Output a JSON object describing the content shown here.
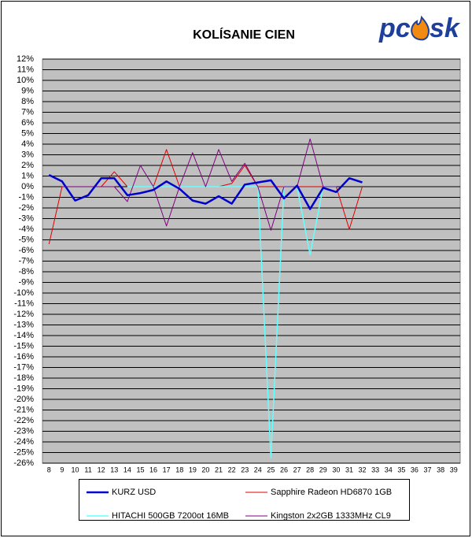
{
  "logo": [
    "pc",
    "sk"
  ],
  "chart_data": {
    "type": "line",
    "title": "KOLÍSANIE CIEN",
    "categories": [
      "8",
      "9",
      "10",
      "11",
      "12",
      "13",
      "14",
      "15",
      "16",
      "17",
      "18",
      "19",
      "20",
      "21",
      "22",
      "23",
      "24",
      "25",
      "26",
      "27",
      "28",
      "29",
      "30",
      "31",
      "32",
      "33",
      "34",
      "35",
      "36",
      "37",
      "38",
      "39"
    ],
    "series": [
      {
        "name": "KURZ USD",
        "color": "#0000cc",
        "width": 2.5,
        "values": [
          1.1,
          0.5,
          -1.3,
          -0.8,
          0.8,
          0.8,
          -0.8,
          -0.6,
          -0.3,
          0.5,
          -0.2,
          -1.3,
          -1.6,
          -0.9,
          -1.6,
          0.2,
          0.4,
          0.6,
          -1.1,
          0.1,
          -2.1,
          -0.1,
          -0.5,
          0.8,
          0.4,
          null,
          null,
          null,
          null,
          null,
          null,
          null
        ]
      },
      {
        "name": "Sapphire Radeon HD6870 1GB",
        "color": "#e00000",
        "width": 1,
        "values": [
          -5.4,
          0,
          0,
          0,
          0,
          1.4,
          0,
          0,
          0,
          3.5,
          0,
          0,
          0,
          0,
          0.3,
          2.0,
          0,
          0,
          0,
          0,
          0,
          0,
          0,
          -4.0,
          0,
          null,
          null,
          null,
          null,
          null,
          null,
          null
        ]
      },
      {
        "name": "HITACHI 500GB 7200ot 16MB",
        "color": "#66ffff",
        "width": 1.5,
        "values": [
          null,
          null,
          null,
          null,
          null,
          null,
          0,
          0,
          0,
          0,
          0,
          0,
          0,
          0,
          0,
          0,
          0,
          -25.5,
          0,
          0,
          -6.4,
          0,
          0,
          null,
          null,
          null,
          null,
          null,
          null,
          null,
          null,
          null
        ]
      },
      {
        "name": "Kingston 2x2GB 1333MHz CL9",
        "color": "#800080",
        "width": 1,
        "values": [
          null,
          0,
          0,
          0,
          0,
          0,
          -1.4,
          2.0,
          0,
          -3.7,
          0,
          3.2,
          0,
          3.5,
          0.5,
          2.2,
          0,
          -4.1,
          0,
          0,
          4.5,
          0,
          0,
          null,
          null,
          null,
          null,
          null,
          null,
          null,
          null,
          null
        ]
      }
    ],
    "ylim": [
      -26,
      12
    ],
    "yticks": [
      {
        "value": 12,
        "label": "12%"
      },
      {
        "value": 11,
        "label": "11%"
      },
      {
        "value": 10,
        "label": "10%"
      },
      {
        "value": 9,
        "label": "9%"
      },
      {
        "value": 8,
        "label": "8%"
      },
      {
        "value": 7,
        "label": "7%"
      },
      {
        "value": 6,
        "label": "6%"
      },
      {
        "value": 5,
        "label": "5%"
      },
      {
        "value": 4,
        "label": "4%"
      },
      {
        "value": 3,
        "label": "3%"
      },
      {
        "value": 2,
        "label": "2%"
      },
      {
        "value": 1,
        "label": "1%"
      },
      {
        "value": 0,
        "label": "0%"
      },
      {
        "value": -1,
        "label": "-1%"
      },
      {
        "value": -2,
        "label": "-2%"
      },
      {
        "value": -3,
        "label": "-3%"
      },
      {
        "value": -4,
        "label": "-4%"
      },
      {
        "value": -5,
        "label": "-5%"
      },
      {
        "value": -6,
        "label": "-6%"
      },
      {
        "value": -7,
        "label": "-7%"
      },
      {
        "value": -8,
        "label": "-8%"
      },
      {
        "value": -9,
        "label": "-9%"
      },
      {
        "value": -10,
        "label": "-10%"
      },
      {
        "value": -11,
        "label": "-11%"
      },
      {
        "value": -12,
        "label": "-12%"
      },
      {
        "value": -13,
        "label": "-13%"
      },
      {
        "value": -14,
        "label": "-14%"
      },
      {
        "value": -15,
        "label": "-15%"
      },
      {
        "value": -16,
        "label": "-16%"
      },
      {
        "value": -17,
        "label": "-17%"
      },
      {
        "value": -18,
        "label": "-18%"
      },
      {
        "value": -19,
        "label": "-19%"
      },
      {
        "value": -20,
        "label": "-20%"
      },
      {
        "value": -21,
        "label": "-21%"
      },
      {
        "value": -22,
        "label": "-22%"
      },
      {
        "value": -23,
        "label": "-23%"
      },
      {
        "value": -24,
        "label": "-24%"
      },
      {
        "value": -25,
        "label": "-25%"
      },
      {
        "value": -26,
        "label": "-26%"
      }
    ],
    "grid": true,
    "plot_color": "#c0c0c0",
    "legend": "bottom"
  }
}
